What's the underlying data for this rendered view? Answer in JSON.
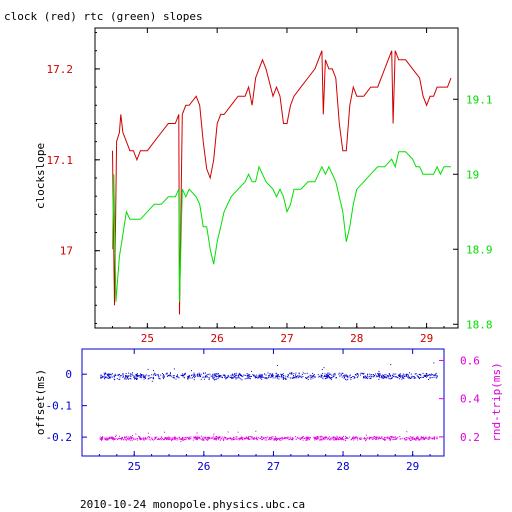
{
  "title": "clock (red) rtc (green) slopes",
  "footer": "2010-10-24 monopole.physics.ubc.ca",
  "colors": {
    "clock": "#d00000",
    "rtc": "#00e000",
    "offset": "#0000d0",
    "rndtrip": "#e000e0",
    "axis": "#000000"
  },
  "chart_data": [
    {
      "type": "line",
      "title": "clock (red) rtc (green) slopes",
      "xlabel": "",
      "ylabel": "clockslope",
      "y2label": "",
      "xlim": [
        24.25,
        29.45
      ],
      "ylim": [
        16.915,
        17.245
      ],
      "y2lim": [
        18.825,
        19.225
      ],
      "x_ticks": [
        "25",
        "26",
        "27",
        "28",
        "29"
      ],
      "x_tick_values": [
        25,
        26,
        27,
        28,
        29
      ],
      "y_ticks": [
        "17",
        "17.1",
        "17.2"
      ],
      "y_tick_values": [
        17,
        17.1,
        17.2
      ],
      "y2_ticks": [
        "18.8",
        "18.9",
        "19",
        "19.1"
      ],
      "y2_tick_values": [
        18.83,
        18.93,
        19.03,
        19.13
      ],
      "series": [
        {
          "axis": "left",
          "color": "#d00000",
          "x": [
            24.5,
            24.53,
            24.56,
            24.6,
            24.62,
            24.65,
            24.7,
            24.75,
            24.8,
            24.85,
            24.9,
            25.0,
            25.1,
            25.2,
            25.3,
            25.4,
            25.45,
            25.46,
            25.5,
            25.55,
            25.6,
            25.7,
            25.75,
            25.8,
            25.85,
            25.9,
            25.95,
            26.0,
            26.05,
            26.1,
            26.2,
            26.3,
            26.4,
            26.45,
            26.5,
            26.55,
            26.6,
            26.65,
            26.7,
            26.8,
            26.85,
            26.9,
            26.95,
            27.0,
            27.05,
            27.1,
            27.2,
            27.3,
            27.4,
            27.45,
            27.5,
            27.52,
            27.55,
            27.6,
            27.65,
            27.7,
            27.75,
            27.8,
            27.85,
            27.9,
            27.95,
            28.0,
            28.1,
            28.2,
            28.3,
            28.45,
            28.5,
            28.52,
            28.55,
            28.6,
            28.7,
            28.8,
            28.9,
            28.95,
            29.0,
            29.05,
            29.1,
            29.15,
            29.2,
            29.25,
            29.3,
            29.35
          ],
          "y": [
            17.11,
            16.94,
            17.12,
            17.13,
            17.15,
            17.13,
            17.12,
            17.11,
            17.11,
            17.1,
            17.11,
            17.11,
            17.12,
            17.13,
            17.14,
            17.14,
            17.15,
            16.93,
            17.15,
            17.16,
            17.16,
            17.17,
            17.16,
            17.12,
            17.09,
            17.08,
            17.1,
            17.14,
            17.15,
            17.15,
            17.16,
            17.17,
            17.17,
            17.18,
            17.16,
            17.19,
            17.2,
            17.21,
            17.2,
            17.17,
            17.18,
            17.17,
            17.14,
            17.14,
            17.16,
            17.17,
            17.18,
            17.19,
            17.2,
            17.21,
            17.22,
            17.15,
            17.21,
            17.2,
            17.2,
            17.19,
            17.14,
            17.11,
            17.11,
            17.16,
            17.18,
            17.17,
            17.17,
            17.18,
            17.18,
            17.21,
            17.22,
            17.14,
            17.22,
            17.21,
            17.21,
            17.2,
            17.19,
            17.17,
            17.16,
            17.17,
            17.17,
            17.18,
            17.18,
            17.18,
            17.18,
            17.19
          ]
        },
        {
          "axis": "right",
          "color": "#00e000",
          "x": [
            24.5,
            24.52,
            24.55,
            24.6,
            24.65,
            24.7,
            24.75,
            24.8,
            24.9,
            25.0,
            25.1,
            25.2,
            25.3,
            25.4,
            25.45,
            25.46,
            25.5,
            25.55,
            25.6,
            25.7,
            25.75,
            25.8,
            25.85,
            25.9,
            25.95,
            26.0,
            26.05,
            26.1,
            26.2,
            26.3,
            26.4,
            26.45,
            26.5,
            26.55,
            26.6,
            26.65,
            26.7,
            26.8,
            26.85,
            26.9,
            26.95,
            27.0,
            27.05,
            27.1,
            27.2,
            27.3,
            27.4,
            27.45,
            27.5,
            27.55,
            27.6,
            27.7,
            27.75,
            27.8,
            27.85,
            27.9,
            27.95,
            28.0,
            28.1,
            28.2,
            28.3,
            28.4,
            28.5,
            28.55,
            28.6,
            28.7,
            28.8,
            28.85,
            28.9,
            28.95,
            29.0,
            29.05,
            29.1,
            29.15,
            29.2,
            29.25,
            29.3,
            29.35
          ],
          "y": [
            18.93,
            19.03,
            18.86,
            18.92,
            18.95,
            18.98,
            18.97,
            18.97,
            18.97,
            18.98,
            18.99,
            18.99,
            19.0,
            19.0,
            19.01,
            18.86,
            19.01,
            19.0,
            19.01,
            19.0,
            18.99,
            18.96,
            18.96,
            18.93,
            18.91,
            18.94,
            18.96,
            18.98,
            19.0,
            19.01,
            19.02,
            19.03,
            19.02,
            19.02,
            19.04,
            19.03,
            19.02,
            19.01,
            19.0,
            19.01,
            19.0,
            18.98,
            18.99,
            19.01,
            19.01,
            19.02,
            19.02,
            19.03,
            19.04,
            19.03,
            19.04,
            19.02,
            19.0,
            18.98,
            18.94,
            18.96,
            18.99,
            19.01,
            19.02,
            19.03,
            19.04,
            19.04,
            19.05,
            19.04,
            19.06,
            19.06,
            19.05,
            19.04,
            19.04,
            19.03,
            19.03,
            19.03,
            19.03,
            19.04,
            19.03,
            19.04,
            19.04,
            19.04
          ]
        }
      ]
    },
    {
      "type": "scatter",
      "xlabel": "",
      "ylabel": "offset(ms)",
      "y2label": "rnd-trip(ms)",
      "xlim": [
        24.25,
        29.45
      ],
      "ylim": [
        -0.26,
        0.08
      ],
      "y2lim": [
        0.1,
        0.66
      ],
      "x_ticks": [
        "25",
        "26",
        "27",
        "28",
        "29"
      ],
      "x_tick_values": [
        25,
        26,
        27,
        28,
        29
      ],
      "y_ticks": [
        "0",
        "-0.1",
        "-0.2"
      ],
      "y_tick_values": [
        0,
        -0.1,
        -0.2
      ],
      "y2_ticks": [
        "0.2",
        "0.4",
        "0.6"
      ],
      "y2_tick_values": [
        0.2,
        0.4,
        0.6
      ],
      "series": [
        {
          "axis": "left",
          "color": "#0000d0",
          "x_range": [
            24.5,
            29.35
          ],
          "center": -0.005,
          "spread": 0.012
        },
        {
          "axis": "right",
          "color": "#e000e0",
          "x_range": [
            24.5,
            29.35
          ],
          "center": 0.195,
          "spread": 0.012
        }
      ]
    }
  ]
}
